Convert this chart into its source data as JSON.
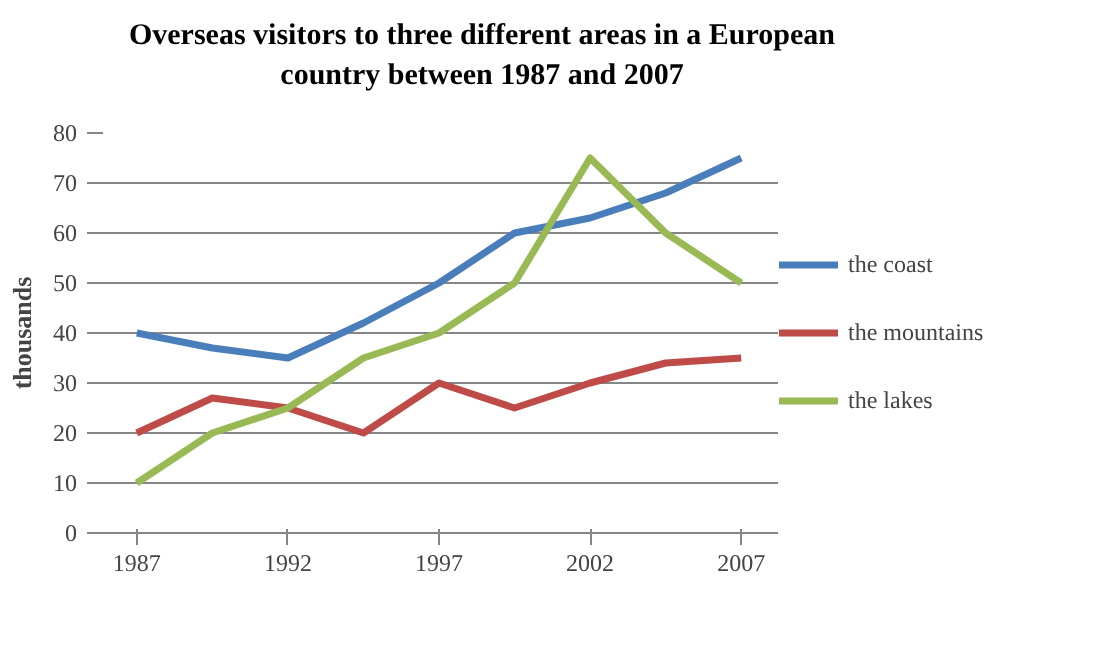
{
  "chart_data": {
    "type": "line",
    "title": "Overseas visitors to three different areas in a European country between 1987 and 2007",
    "ylabel": "thousands",
    "categories": [
      "1987",
      null,
      "1992",
      null,
      "1997",
      null,
      "2002",
      null,
      "2007"
    ],
    "series": [
      {
        "name": "the coast",
        "color": "#4a7ebb",
        "values": [
          40,
          37,
          35,
          42,
          50,
          60,
          63,
          68,
          75
        ]
      },
      {
        "name": "the mountains",
        "color": "#be4b48",
        "values": [
          20,
          27,
          25,
          20,
          30,
          25,
          30,
          34,
          35
        ]
      },
      {
        "name": "the lakes",
        "color": "#98b954",
        "values": [
          10,
          20,
          25,
          35,
          40,
          50,
          75,
          60,
          50
        ]
      }
    ],
    "ylim": [
      0,
      80
    ],
    "yticks": [
      0,
      10,
      20,
      30,
      40,
      50,
      60,
      70,
      80
    ],
    "grid": "y",
    "legend": "right",
    "marker": "none",
    "line_style": "solid"
  }
}
